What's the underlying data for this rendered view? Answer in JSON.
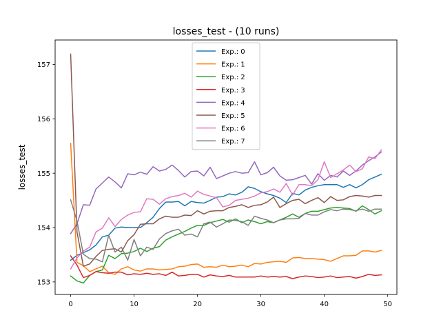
{
  "chart_data": {
    "type": "line",
    "title": "losses_test - (10 runs)",
    "xlabel": "",
    "ylabel": "losses_test",
    "xlim": [
      -2.45,
      51.45
    ],
    "ylim": [
      152.77,
      157.45
    ],
    "x_ticks": [
      0,
      10,
      20,
      30,
      40,
      50
    ],
    "y_ticks": [
      153,
      154,
      155,
      156,
      157
    ],
    "x_tick_labels": [
      "0",
      "10",
      "20",
      "30",
      "40",
      "50"
    ],
    "y_tick_labels": [
      "153",
      "154",
      "155",
      "156",
      "157"
    ],
    "grid": false,
    "legend_position": "top-center",
    "x": [
      0,
      1,
      2,
      3,
      4,
      5,
      6,
      7,
      8,
      9,
      10,
      11,
      12,
      13,
      14,
      15,
      16,
      17,
      18,
      19,
      20,
      21,
      22,
      23,
      24,
      25,
      26,
      27,
      28,
      29,
      30,
      31,
      32,
      33,
      34,
      35,
      36,
      37,
      38,
      39,
      40,
      41,
      42,
      43,
      44,
      45,
      46,
      47,
      48,
      49
    ],
    "series": [
      {
        "name": "Exp.: 0",
        "color": "#1f77b4",
        "values": [
          153.4,
          153.49,
          153.54,
          153.59,
          153.68,
          153.83,
          153.86,
          153.99,
          154.01,
          154.0,
          154.0,
          154.0,
          154.09,
          154.19,
          154.35,
          154.47,
          154.47,
          154.48,
          154.4,
          154.48,
          154.46,
          154.45,
          154.5,
          154.56,
          154.57,
          154.62,
          154.6,
          154.65,
          154.75,
          154.72,
          154.66,
          154.62,
          154.59,
          154.54,
          154.46,
          154.63,
          154.6,
          154.69,
          154.74,
          154.77,
          154.79,
          154.79,
          154.79,
          154.74,
          154.79,
          154.73,
          154.79,
          154.88,
          154.93,
          154.98
        ]
      },
      {
        "name": "Exp.: 1",
        "color": "#ff7f0e",
        "values": [
          155.55,
          153.36,
          153.3,
          153.19,
          153.24,
          153.29,
          153.17,
          153.14,
          153.24,
          153.28,
          153.22,
          153.2,
          153.24,
          153.24,
          153.22,
          153.23,
          153.24,
          153.28,
          153.29,
          153.32,
          153.33,
          153.27,
          153.28,
          153.27,
          153.31,
          153.28,
          153.29,
          153.31,
          153.28,
          153.34,
          153.33,
          153.36,
          153.37,
          153.38,
          153.36,
          153.44,
          153.45,
          153.43,
          153.43,
          153.42,
          153.41,
          153.38,
          153.43,
          153.48,
          153.48,
          153.49,
          153.57,
          153.57,
          153.55,
          153.58
        ]
      },
      {
        "name": "Exp.: 2",
        "color": "#2ca02c",
        "values": [
          153.11,
          153.02,
          152.98,
          153.12,
          153.19,
          153.22,
          153.49,
          153.43,
          153.52,
          153.53,
          153.56,
          153.62,
          153.56,
          153.62,
          153.65,
          153.77,
          153.83,
          153.88,
          153.93,
          153.99,
          154.04,
          154.04,
          154.09,
          154.12,
          154.15,
          154.1,
          154.16,
          154.09,
          154.14,
          154.11,
          154.07,
          154.11,
          154.09,
          154.14,
          154.19,
          154.25,
          154.19,
          154.26,
          154.3,
          154.3,
          154.33,
          154.36,
          154.37,
          154.36,
          154.35,
          154.3,
          154.4,
          154.33,
          154.25,
          154.31
        ]
      },
      {
        "name": "Exp.: 3",
        "color": "#d62728",
        "values": [
          153.48,
          153.31,
          153.08,
          153.12,
          153.19,
          153.17,
          153.16,
          153.18,
          153.18,
          153.13,
          153.15,
          153.14,
          153.16,
          153.14,
          153.15,
          153.12,
          153.18,
          153.11,
          153.12,
          153.14,
          153.14,
          153.09,
          153.13,
          153.11,
          153.1,
          153.12,
          153.09,
          153.09,
          153.09,
          153.09,
          153.11,
          153.09,
          153.1,
          153.09,
          153.1,
          153.06,
          153.09,
          153.11,
          153.1,
          153.08,
          153.09,
          153.11,
          153.08,
          153.09,
          153.1,
          153.07,
          153.1,
          153.14,
          153.12,
          153.13
        ]
      },
      {
        "name": "Exp.: 4",
        "color": "#9467bd",
        "values": [
          153.89,
          154.07,
          154.42,
          154.41,
          154.71,
          154.82,
          154.93,
          154.84,
          154.73,
          154.99,
          154.97,
          155.02,
          154.98,
          155.12,
          155.04,
          155.07,
          155.15,
          155.05,
          154.93,
          155.03,
          155.04,
          154.95,
          155.11,
          154.9,
          154.95,
          155.0,
          155.03,
          155.0,
          155.01,
          155.21,
          154.97,
          155.01,
          155.11,
          154.95,
          154.87,
          154.88,
          154.92,
          154.96,
          154.8,
          154.99,
          154.87,
          154.96,
          154.93,
          155.04,
          154.96,
          155.04,
          155.15,
          155.23,
          155.3,
          155.39
        ]
      },
      {
        "name": "Exp.: 5",
        "color": "#8c564b",
        "values": [
          157.19,
          153.92,
          153.29,
          153.33,
          153.47,
          153.58,
          153.6,
          153.61,
          153.55,
          153.76,
          153.87,
          154.06,
          154.07,
          154.07,
          154.16,
          154.21,
          154.19,
          154.19,
          154.23,
          154.22,
          154.31,
          154.25,
          154.3,
          154.31,
          154.31,
          154.37,
          154.39,
          154.42,
          154.37,
          154.41,
          154.42,
          154.47,
          154.56,
          154.37,
          154.44,
          154.5,
          154.52,
          154.44,
          154.5,
          154.55,
          154.46,
          154.57,
          154.5,
          154.51,
          154.57,
          154.59,
          154.58,
          154.56,
          154.59,
          154.59
        ]
      },
      {
        "name": "Exp.: 6",
        "color": "#e377c2",
        "values": [
          153.24,
          153.44,
          153.57,
          153.64,
          153.92,
          153.99,
          154.18,
          154.02,
          154.15,
          154.23,
          154.28,
          154.29,
          154.53,
          154.52,
          154.43,
          154.53,
          154.57,
          154.59,
          154.63,
          154.56,
          154.67,
          154.61,
          154.58,
          154.55,
          154.38,
          154.41,
          154.5,
          154.52,
          154.54,
          154.58,
          154.64,
          154.66,
          154.71,
          154.65,
          154.81,
          154.6,
          154.79,
          154.79,
          154.77,
          154.88,
          155.21,
          154.92,
          154.99,
          155.06,
          155.15,
          155.03,
          155.08,
          155.3,
          155.27,
          155.43
        ]
      },
      {
        "name": "Exp.: 7",
        "color": "#7f7f7f",
        "values": [
          154.51,
          154.12,
          153.51,
          153.43,
          153.42,
          153.37,
          153.86,
          153.55,
          153.64,
          153.4,
          153.78,
          153.48,
          153.64,
          153.6,
          153.79,
          153.89,
          153.94,
          153.97,
          153.86,
          153.88,
          153.83,
          154.07,
          154.1,
          154.01,
          154.07,
          154.14,
          154.13,
          154.11,
          154.04,
          154.21,
          154.17,
          154.14,
          154.09,
          154.14,
          154.16,
          154.16,
          154.17,
          154.26,
          154.23,
          154.23,
          154.29,
          154.33,
          154.31,
          154.34,
          154.33,
          154.31,
          154.34,
          154.3,
          154.34,
          154.34
        ]
      }
    ]
  }
}
